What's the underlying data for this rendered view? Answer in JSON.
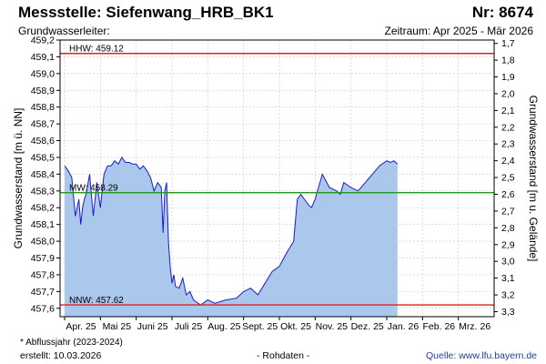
{
  "header": {
    "title": "Messstelle: Siefenwang_HRB_BK1",
    "number": "Nr: 8674",
    "subtitle_left": "Grundwasserleiter:",
    "subtitle_right": "Zeitraum: Apr 2025 - Mär 2026"
  },
  "footer": {
    "note": "* Abflussjahr (2023-2024)",
    "created": "erstellt:  10.03.2026",
    "rawdata": "- Rohdaten -",
    "source": "Quelle: www.lfu.bayern.de"
  },
  "colors": {
    "fill": "#a9c8ec",
    "line": "#1a1acc",
    "hhw": "#e0201b",
    "mw": "#1e9a1e",
    "nnw": "#e0201b",
    "grid": "#c8c8c8"
  },
  "chart_data": {
    "type": "area",
    "xlabel": "",
    "ylabel": "Grundwasserstand [m ü. NN]",
    "ylabel_right": "Grundwasserstand [m u. Gelände]",
    "ylim": [
      457.55,
      459.2
    ],
    "right_ylim": [
      3.33,
      1.68
    ],
    "y_ticks": [
      "457,6",
      "457,7",
      "457,8",
      "457,9",
      "458,0",
      "458,1",
      "458,2",
      "458,3",
      "458,4",
      "458,5",
      "458,6",
      "458,7",
      "458,8",
      "458,9",
      "459,0",
      "459,1",
      "459,2"
    ],
    "right_ticks": [
      "1,7",
      "1,8",
      "1,9",
      "2,0",
      "2,1",
      "2,2",
      "2,3",
      "2,4",
      "2,5",
      "2,6",
      "2,7",
      "2,8",
      "2,9",
      "3,0",
      "3,1",
      "3,2",
      "3,3"
    ],
    "x_ticks": [
      "Apr. 25",
      "Mai 25",
      "Juni 25",
      "Juli 25",
      "Aug. 25",
      "Sept. 25",
      "Okt. 25",
      "Nov. 25",
      "Dez. 25",
      "Jan. 26",
      "Feb. 26",
      "Mrz. 26"
    ],
    "grid": true,
    "reference_lines": [
      {
        "label": "HHW: 459.12",
        "value": 459.12
      },
      {
        "label": "MW: 458.29",
        "value": 458.29
      },
      {
        "label": "NNW: 457.62",
        "value": 457.62
      }
    ],
    "series": [
      {
        "x_months": [
          0,
          0.1,
          0.2,
          0.3,
          0.4,
          0.45,
          0.5,
          0.55,
          0.6,
          0.7,
          0.8,
          0.9,
          1.0,
          1.1,
          1.2,
          1.3,
          1.4,
          1.5,
          1.6,
          1.7,
          1.8,
          1.9,
          2.0,
          2.1,
          2.2,
          2.3,
          2.4,
          2.5,
          2.6,
          2.7,
          2.75,
          2.8,
          2.85,
          2.9,
          2.95,
          3.0,
          3.05,
          3.1,
          3.2,
          3.3,
          3.4,
          3.5,
          3.6,
          3.8,
          4.0,
          4.2,
          4.5,
          4.8,
          5.0,
          5.2,
          5.4,
          5.6,
          5.8,
          6.0,
          6.2,
          6.4,
          6.5,
          6.6,
          6.7,
          6.8,
          6.9,
          7.0,
          7.2,
          7.4,
          7.6,
          7.7,
          7.8,
          8.0,
          8.2,
          8.4,
          8.6,
          8.8,
          9.0,
          9.1,
          9.2,
          9.3
        ],
        "values": [
          458.45,
          458.42,
          458.38,
          458.15,
          458.25,
          458.1,
          458.2,
          458.25,
          458.28,
          458.4,
          458.15,
          458.35,
          458.2,
          458.4,
          458.45,
          458.45,
          458.48,
          458.46,
          458.5,
          458.47,
          458.47,
          458.46,
          458.46,
          458.43,
          458.45,
          458.42,
          458.38,
          458.3,
          458.35,
          458.32,
          458.05,
          458.3,
          458.35,
          458.0,
          457.85,
          457.75,
          457.8,
          457.73,
          457.72,
          457.78,
          457.68,
          457.7,
          457.65,
          457.62,
          457.65,
          457.63,
          457.65,
          457.66,
          457.7,
          457.72,
          457.68,
          457.75,
          457.82,
          457.85,
          457.93,
          458.0,
          458.25,
          458.28,
          458.25,
          458.22,
          458.2,
          458.25,
          458.4,
          458.32,
          458.3,
          458.28,
          458.35,
          458.32,
          458.3,
          458.35,
          458.4,
          458.45,
          458.48,
          458.47,
          458.48,
          458.46
        ]
      }
    ]
  }
}
